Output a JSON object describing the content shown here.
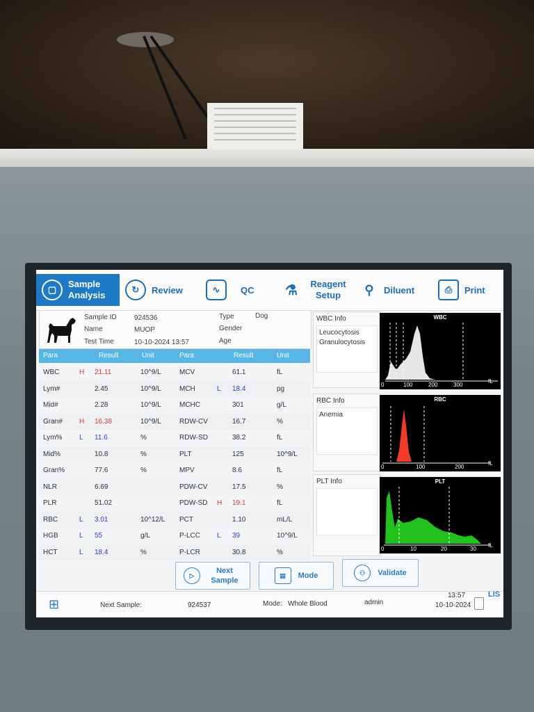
{
  "toolbar": {
    "sample_analysis": "Sample Analysis",
    "review": "Review",
    "qc": "QC",
    "reagent_setup": "Reagent Setup",
    "diluent": "Diluent",
    "print": "Print"
  },
  "sample": {
    "id_label": "Sample ID",
    "id_value": "924536",
    "name_label": "Name",
    "name_value": "MUOP",
    "test_time_label": "Test Time",
    "test_time_value": "10-10-2024 13:57",
    "type_label": "Type",
    "type_value": "Dog",
    "gender_label": "Gender",
    "age_label": "Age"
  },
  "table": {
    "headers": [
      "Para",
      "Result",
      "Unit",
      "Para",
      "Result",
      "Unit"
    ],
    "rows": [
      {
        "p1": "WBC",
        "f1": "H",
        "r1": "21.11",
        "u1": "10^9/L",
        "p2": "MCV",
        "f2": "",
        "r2": "61.1",
        "u2": "fL"
      },
      {
        "p1": "Lym#",
        "f1": "",
        "r1": "2.45",
        "u1": "10^9/L",
        "p2": "MCH",
        "f2": "L",
        "r2": "18.4",
        "u2": "pg"
      },
      {
        "p1": "Mid#",
        "f1": "",
        "r1": "2.28",
        "u1": "10^9/L",
        "p2": "MCHC",
        "f2": "",
        "r2": "301",
        "u2": "g/L"
      },
      {
        "p1": "Gran#",
        "f1": "H",
        "r1": "16.38",
        "u1": "10^9/L",
        "p2": "RDW-CV",
        "f2": "",
        "r2": "16.7",
        "u2": "%"
      },
      {
        "p1": "Lym%",
        "f1": "L",
        "r1": "11.6",
        "u1": "%",
        "p2": "RDW-SD",
        "f2": "",
        "r2": "38.2",
        "u2": "fL"
      },
      {
        "p1": "Mid%",
        "f1": "",
        "r1": "10.8",
        "u1": "%",
        "p2": "PLT",
        "f2": "",
        "r2": "125",
        "u2": "10^9/L"
      },
      {
        "p1": "Gran%",
        "f1": "",
        "r1": "77.6",
        "u1": "%",
        "p2": "MPV",
        "f2": "",
        "r2": "8.6",
        "u2": "fL"
      },
      {
        "p1": "NLR",
        "f1": "",
        "r1": "6.69",
        "u1": "",
        "p2": "PDW-CV",
        "f2": "",
        "r2": "17.5",
        "u2": "%"
      },
      {
        "p1": "PLR",
        "f1": "",
        "r1": "51.02",
        "u1": "",
        "p2": "PDW-SD",
        "f2": "H",
        "r2": "19.1",
        "u2": "fL"
      },
      {
        "p1": "RBC",
        "f1": "L",
        "r1": "3.01",
        "u1": "10^12/L",
        "p2": "PCT",
        "f2": "",
        "r2": "1.10",
        "u2": "mL/L"
      },
      {
        "p1": "HGB",
        "f1": "L",
        "r1": "55",
        "u1": "g/L",
        "p2": "P-LCC",
        "f2": "L",
        "r2": "39",
        "u2": "10^9/L"
      },
      {
        "p1": "HCT",
        "f1": "L",
        "r1": "18.4",
        "u1": "%",
        "p2": "P-LCR",
        "f2": "",
        "r2": "30.8",
        "u2": "%"
      }
    ]
  },
  "wbc_info": {
    "title": "WBC Info",
    "text": "Leucocytosis\nGranulocytosis"
  },
  "rbc_info": {
    "title": "RBC Info",
    "text": "Anemia"
  },
  "plt_info": {
    "title": "PLT Info",
    "text": ""
  },
  "histograms": {
    "wbc": {
      "title": "WBC",
      "ticks": [
        "0",
        "100",
        "200",
        "300"
      ],
      "unit": "fL"
    },
    "rbc": {
      "title": "RBC",
      "ticks": [
        "0",
        "100",
        "200"
      ],
      "unit": "fL"
    },
    "plt": {
      "title": "PLT",
      "ticks": [
        "0",
        "10",
        "20",
        "30"
      ],
      "unit": "fL"
    }
  },
  "buttons": {
    "next_sample": "Next Sample",
    "mode": "Mode",
    "validate": "Validate"
  },
  "status": {
    "next_sample_label": "Next Sample:",
    "next_sample_value": "924537",
    "mode_label": "Mode:",
    "mode_value": "Whole Blood",
    "user": "admin",
    "time": "13:57",
    "date": "10-10-2024",
    "lis": "LIS"
  },
  "colors": {
    "accent": "#1f7ac6",
    "header": "#58b6e6",
    "high": "#e03535",
    "low": "#2c3fd0",
    "rbc_curve": "#f03a2a",
    "plt_curve": "#22c21e"
  }
}
